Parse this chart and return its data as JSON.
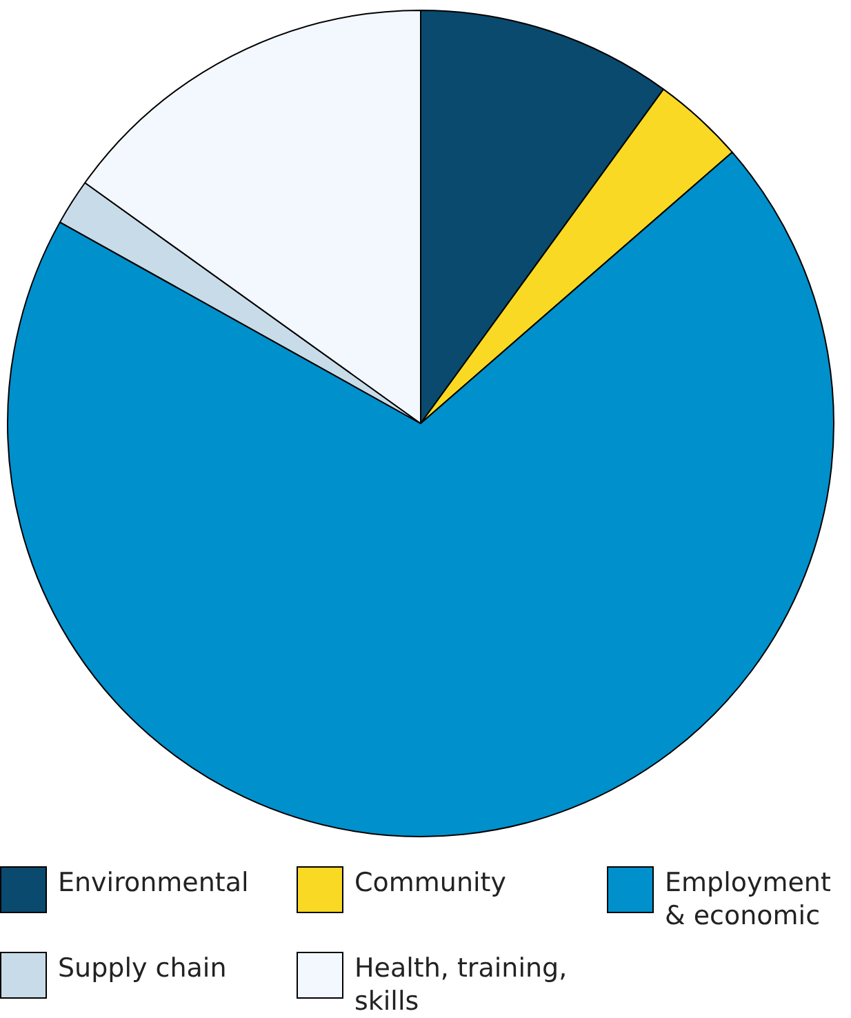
{
  "chart_data": {
    "type": "pie",
    "categories": [
      "Environmental",
      "Community",
      "Employment & economic",
      "Supply chain",
      "Health, training, skills"
    ],
    "values": [
      10,
      3.6,
      69.5,
      1.8,
      15.1
    ],
    "colors": [
      "#0a4a6e",
      "#f9d923",
      "#0090cc",
      "#c8dbe8",
      "#f3f8fe"
    ],
    "legend": "bottom"
  }
}
